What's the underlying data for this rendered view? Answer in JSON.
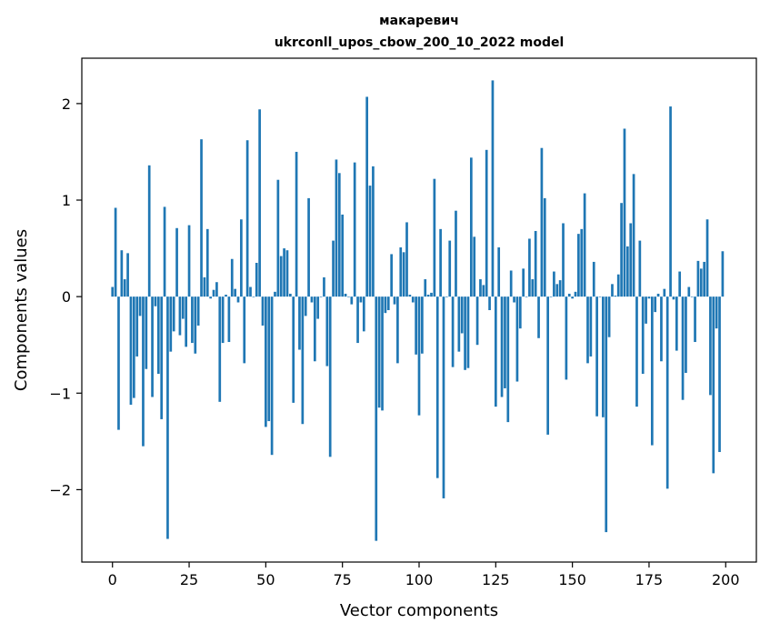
{
  "chart_data": {
    "type": "bar",
    "title": "макаревич",
    "subtitle": "ukrconll_upos_cbow_200_10_2022 model",
    "xlabel": "Vector components",
    "ylabel": "Components values",
    "xlim": [
      -10,
      210
    ],
    "ylim": [
      -2.75,
      2.47
    ],
    "xticks": [
      0,
      25,
      50,
      75,
      100,
      125,
      150,
      175,
      200
    ],
    "yticks": [
      -2,
      -1,
      0,
      1,
      2
    ],
    "ytick_labels": [
      "−2",
      "−1",
      "0",
      "1",
      "2"
    ],
    "grid": false,
    "bar_color": "#1f77b4",
    "series": [
      {
        "values": [
          0.1,
          0.92,
          -1.38,
          0.48,
          0.18,
          0.45,
          -1.12,
          -1.05,
          -0.62,
          -0.2,
          -1.55,
          -0.75,
          1.36,
          -1.04,
          -0.1,
          -0.8,
          -1.27,
          0.93,
          -2.51,
          -0.57,
          -0.36,
          0.71,
          -0.4,
          -0.23,
          -0.52,
          0.74,
          -0.48,
          -0.59,
          -0.3,
          1.63,
          0.2,
          0.7,
          -0.02,
          0.07,
          0.15,
          -1.09,
          -0.48,
          0.02,
          -0.47,
          0.39,
          0.08,
          -0.06,
          0.8,
          -0.69,
          1.62,
          0.1,
          0.0,
          0.35,
          1.94,
          -0.3,
          -1.35,
          -1.29,
          -1.64,
          0.05,
          1.21,
          0.42,
          0.5,
          0.48,
          0.03,
          -1.1,
          1.5,
          -0.55,
          -1.32,
          -0.2,
          1.02,
          -0.06,
          -0.67,
          -0.23,
          0.0,
          0.2,
          -0.72,
          -1.66,
          0.58,
          1.42,
          1.28,
          0.85,
          0.03,
          0.0,
          -0.08,
          1.39,
          -0.48,
          -0.06,
          -0.36,
          2.07,
          1.15,
          1.35,
          -2.53,
          -1.15,
          -1.18,
          -0.17,
          -0.14,
          0.44,
          -0.08,
          -0.69,
          0.51,
          0.46,
          0.77,
          0.02,
          -0.06,
          -0.6,
          -1.23,
          -0.59,
          0.18,
          0.02,
          0.04,
          1.22,
          -1.88,
          0.7,
          -2.09,
          0.0,
          0.58,
          -0.73,
          0.89,
          -0.57,
          -0.38,
          -0.76,
          -0.74,
          1.44,
          0.62,
          -0.5,
          0.18,
          0.12,
          1.52,
          -0.14,
          2.24,
          -1.14,
          0.51,
          -1.04,
          -0.95,
          -1.3,
          0.27,
          -0.06,
          -0.88,
          -0.33,
          0.29,
          0.0,
          0.6,
          0.18,
          0.68,
          -0.43,
          1.54,
          1.02,
          -1.43,
          0.0,
          0.26,
          0.13,
          0.17,
          0.76,
          -0.86,
          0.03,
          -0.02,
          0.05,
          0.65,
          0.7,
          1.07,
          -0.69,
          -0.62,
          0.36,
          -1.24,
          0.0,
          -1.25,
          -2.44,
          -0.42,
          0.13,
          0.01,
          0.23,
          0.97,
          1.74,
          0.52,
          0.76,
          1.27,
          -1.14,
          0.58,
          -0.8,
          -0.28,
          -0.02,
          -1.54,
          -0.16,
          0.03,
          -0.67,
          0.08,
          -1.99,
          1.97,
          -0.03,
          -0.56,
          0.26,
          -1.07,
          -0.79,
          0.1,
          0.0,
          -0.47,
          0.37,
          0.29,
          0.36,
          0.8,
          -1.02,
          -1.83,
          -0.33,
          -1.61,
          0.47
        ]
      }
    ]
  }
}
